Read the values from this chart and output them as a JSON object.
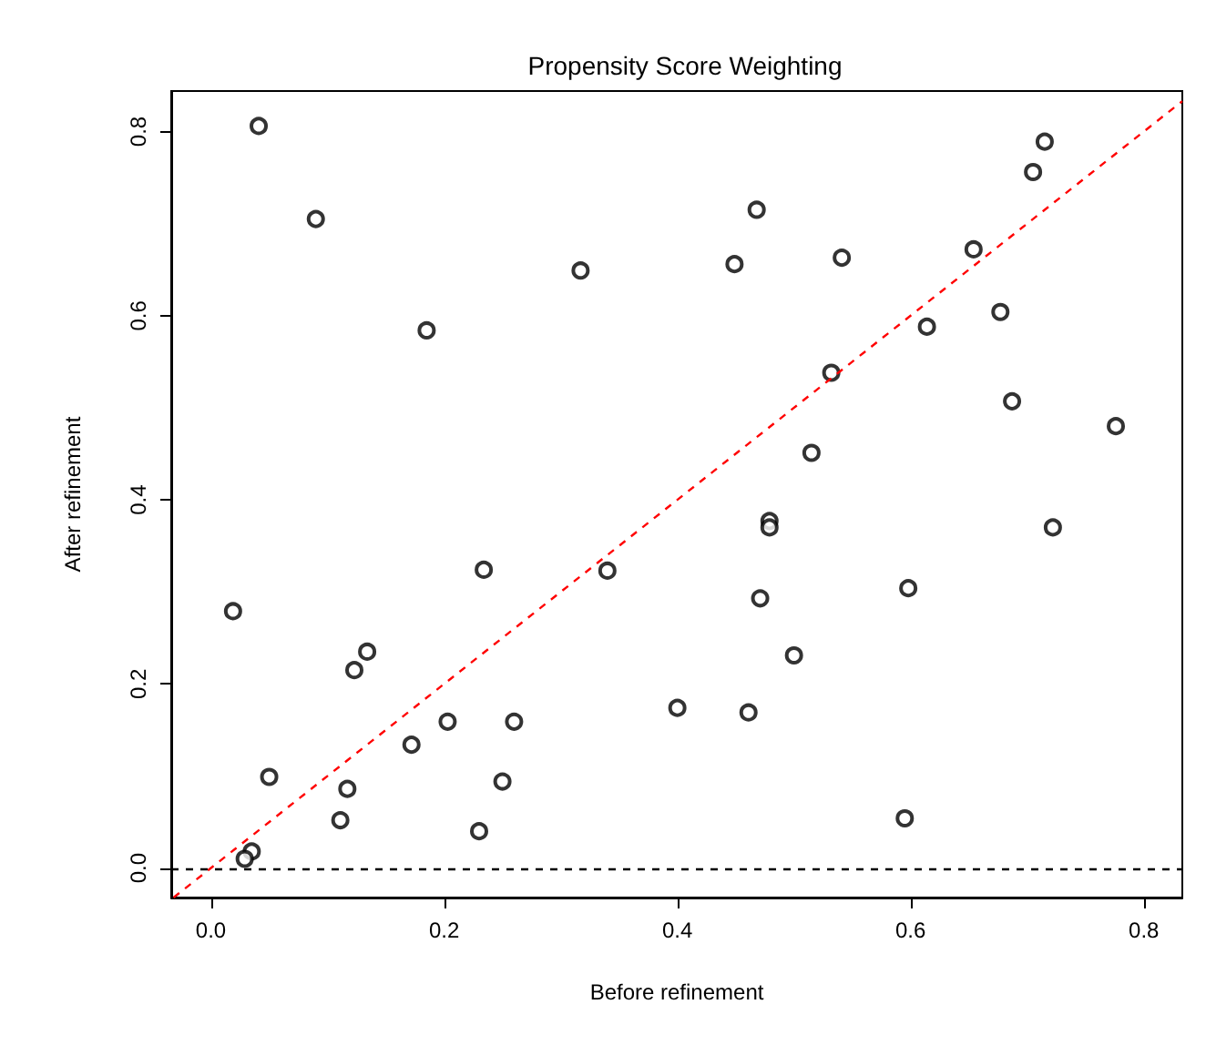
{
  "chart_data": {
    "type": "scatter",
    "title": "Propensity Score Weighting",
    "xlabel": "Before refinement",
    "ylabel": "After refinement",
    "xlim": [
      -0.034,
      0.833
    ],
    "ylim": [
      -0.032,
      0.844
    ],
    "xticks": [
      {
        "value": 0,
        "label": "0.0"
      },
      {
        "value": 0.2,
        "label": "0.2"
      },
      {
        "value": 0.4,
        "label": "0.4"
      },
      {
        "value": 0.6,
        "label": "0.6"
      },
      {
        "value": 0.8,
        "label": "0.8"
      }
    ],
    "yticks": [
      {
        "value": 0,
        "label": "0.0"
      },
      {
        "value": 0.2,
        "label": "0.2"
      },
      {
        "value": 0.4,
        "label": "0.4"
      },
      {
        "value": 0.6,
        "label": "0.6"
      },
      {
        "value": 0.8,
        "label": "0.8"
      }
    ],
    "grid": false,
    "marker": "circle",
    "series": [
      {
        "color": "#000000",
        "x": [
          0.041,
          0.09,
          0.185,
          0.317,
          0.019,
          0.234,
          0.34,
          0.134,
          0.123,
          0.203,
          0.26,
          0.172,
          0.05,
          0.117,
          0.25,
          0.111,
          0.23,
          0.035,
          0.029,
          0.4,
          0.461,
          0.468,
          0.449,
          0.541,
          0.532,
          0.515,
          0.479,
          0.479,
          0.471,
          0.5,
          0.598,
          0.595,
          0.614,
          0.654,
          0.677,
          0.687,
          0.705,
          0.715,
          0.722,
          0.776
        ],
        "values": [
          0.806,
          0.705,
          0.584,
          0.649,
          0.279,
          0.324,
          0.323,
          0.235,
          0.215,
          0.159,
          0.159,
          0.134,
          0.099,
          0.086,
          0.094,
          0.052,
          0.04,
          0.018,
          0.01,
          0.174,
          0.169,
          0.715,
          0.656,
          0.663,
          0.538,
          0.451,
          0.377,
          0.37,
          0.293,
          0.231,
          0.304,
          0.054,
          0.588,
          0.672,
          0.604,
          0.507,
          0.756,
          0.789,
          0.37,
          0.48
        ]
      },
      {
        "type": "line",
        "color": "#ff0000",
        "line_style": "dashed",
        "marker": "none",
        "x": [
          -0.032,
          0.833
        ],
        "values": [
          -0.032,
          0.833
        ]
      }
    ],
    "ref_lines": [
      {
        "axis": "y",
        "value": 0,
        "color": "#000000",
        "line_style": "dashed"
      }
    ]
  }
}
